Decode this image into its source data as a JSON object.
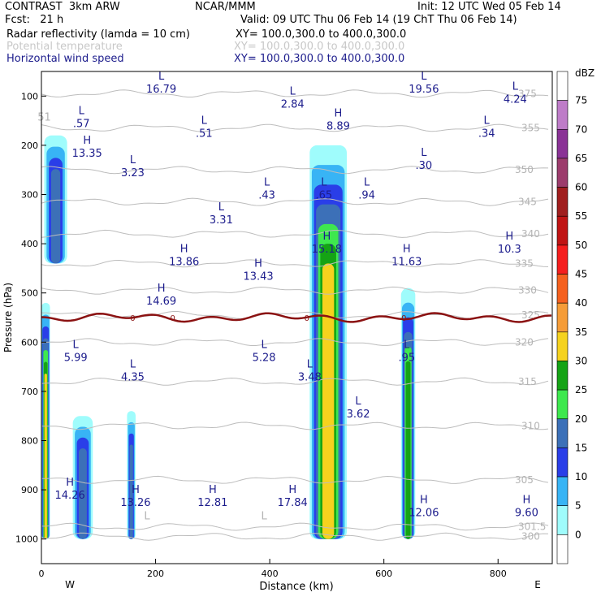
{
  "header": {
    "model": "CONTRAST  3km ARW",
    "center": "NCAR/MMM",
    "init": "Init: 12 UTC Wed 05 Feb 14",
    "fcst": "Fcst:   21 h",
    "valid": "Valid: 09 UTC Thu 06 Feb 14 (19 ChT Thu 06 Feb 14)",
    "fields": [
      {
        "name": "Radar reflectivity (lamda = 10 cm)",
        "xy": "XY= 100.0,300.0 to 400.0,300.0"
      },
      {
        "name": "Potential temperature",
        "xy": "XY= 100.0,300.0 to 400.0,300.0"
      },
      {
        "name": "Horizontal wind speed",
        "xy": "XY= 100.0,300.0 to 400.0,300.0"
      }
    ]
  },
  "chart_data": {
    "type": "heatmap",
    "xlabel": "Distance (km)",
    "ylabel": "Pressure (hPa)",
    "xlim": [
      0,
      895
    ],
    "ylim": [
      1050,
      50
    ],
    "x_ticks": [
      0,
      200,
      400,
      600,
      800
    ],
    "y_ticks": [
      100,
      200,
      300,
      400,
      500,
      600,
      700,
      800,
      900,
      1000
    ],
    "west_label": "W",
    "east_label": "E",
    "colorbar": {
      "unit": "dBZ",
      "levels": [
        0,
        5,
        10,
        15,
        20,
        25,
        30,
        35,
        40,
        45,
        50,
        55,
        60,
        65,
        70,
        75
      ],
      "colors": [
        "#ffffff",
        "#9ffcfc",
        "#38b4f5",
        "#2a3ee8",
        "#3c70b8",
        "#3ee84e",
        "#15a315",
        "#f5d21e",
        "#f59c38",
        "#f5601e",
        "#f51e1e",
        "#c01414",
        "#a01e1e",
        "#9c3c6c",
        "#8a3296",
        "#be7cc8",
        "#ffffff"
      ]
    },
    "reflectivity_cores": [
      {
        "x": [
          5,
          45
        ],
        "p": [
          180,
          440
        ],
        "max_dbz": 20
      },
      {
        "x": [
          0,
          15
        ],
        "p": [
          520,
          1000
        ],
        "max_dbz": 35
      },
      {
        "x": [
          55,
          90
        ],
        "p": [
          750,
          1000
        ],
        "max_dbz": 20
      },
      {
        "x": [
          150,
          165
        ],
        "p": [
          740,
          1000
        ],
        "max_dbz": 20
      },
      {
        "x": [
          470,
          535
        ],
        "p": [
          200,
          1000
        ],
        "max_dbz": 35
      },
      {
        "x": [
          630,
          655
        ],
        "p": [
          490,
          1000
        ],
        "max_dbz": 30
      }
    ],
    "theta_contours": [
      {
        "label": "300",
        "p": 995
      },
      {
        "label": "301.5",
        "p": 975
      },
      {
        "label": "305",
        "p": 880
      },
      {
        "label": "310",
        "p": 770
      },
      {
        "label": "315",
        "p": 680
      },
      {
        "label": "320",
        "p": 600
      },
      {
        "label": "325",
        "p": 545
      },
      {
        "label": "330",
        "p": 495
      },
      {
        "label": "335",
        "p": 440
      },
      {
        "label": "340",
        "p": 380
      },
      {
        "label": "345",
        "p": 315
      },
      {
        "label": "350",
        "p": 250
      },
      {
        "label": "355",
        "p": 165
      },
      {
        "label": "375",
        "p": 95
      }
    ],
    "freezing_level": {
      "label": "0",
      "p": 550
    },
    "wind_extrema": [
      {
        "type": "H",
        "value": "13.35",
        "x": 80,
        "p": 210
      },
      {
        "type": "H",
        "value": "13.86",
        "x": 250,
        "p": 430
      },
      {
        "type": "H",
        "value": "13.43",
        "x": 380,
        "p": 460
      },
      {
        "type": "H",
        "value": "14.69",
        "x": 210,
        "p": 510
      },
      {
        "type": "H",
        "value": "15.18",
        "x": 500,
        "p": 405
      },
      {
        "type": "H",
        "value": "11.63",
        "x": 640,
        "p": 430
      },
      {
        "type": "H",
        "value": "10.3",
        "x": 820,
        "p": 405
      },
      {
        "type": "H",
        "value": "8.89",
        "x": 520,
        "p": 155
      },
      {
        "type": "H",
        "value": "14.26",
        "x": 50,
        "p": 905
      },
      {
        "type": "H",
        "value": "13.26",
        "x": 165,
        "p": 920
      },
      {
        "type": "H",
        "value": "12.81",
        "x": 300,
        "p": 920
      },
      {
        "type": "H",
        "value": "17.84",
        "x": 440,
        "p": 920
      },
      {
        "type": "H",
        "value": "12.06",
        "x": 670,
        "p": 940
      },
      {
        "type": "H",
        "value": "9.60",
        "x": 850,
        "p": 940
      },
      {
        "type": "L",
        "value": "16.79",
        "x": 210,
        "p": 80
      },
      {
        "type": "L",
        "value": "2.84",
        "x": 440,
        "p": 110
      },
      {
        "type": "L",
        "value": "19.56",
        "x": 670,
        "p": 80
      },
      {
        "type": "L",
        "value": "4.24",
        "x": 830,
        "p": 100
      },
      {
        "type": "L",
        "value": ".57",
        "x": 70,
        "p": 150
      },
      {
        "type": "L",
        "value": ".51",
        "x": 285,
        "p": 170
      },
      {
        "type": "L",
        "value": ".34",
        "x": 780,
        "p": 170
      },
      {
        "type": "L",
        "value": "3.23",
        "x": 160,
        "p": 250
      },
      {
        "type": "L",
        "value": ".30",
        "x": 670,
        "p": 235
      },
      {
        "type": "L",
        "value": ".43",
        "x": 395,
        "p": 295
      },
      {
        "type": "L",
        "value": ".65",
        "x": 495,
        "p": 295
      },
      {
        "type": "L",
        "value": ".94",
        "x": 570,
        "p": 295
      },
      {
        "type": "L",
        "value": "3.31",
        "x": 315,
        "p": 345
      },
      {
        "type": "L",
        "value": "5.99",
        "x": 60,
        "p": 625
      },
      {
        "type": "L",
        "value": "5.28",
        "x": 390,
        "p": 625
      },
      {
        "type": "L",
        "value": ".95",
        "x": 640,
        "p": 625
      },
      {
        "type": "L",
        "value": "4.35",
        "x": 160,
        "p": 665
      },
      {
        "type": "L",
        "value": "3.48",
        "x": 470,
        "p": 665
      },
      {
        "type": "L",
        "value": "3.62",
        "x": 555,
        "p": 740
      }
    ],
    "edge_labels": [
      {
        "text": "51",
        "x": 5,
        "p": 150
      },
      {
        "text": "L",
        "x": 185,
        "p": 960
      },
      {
        "text": "L",
        "x": 390,
        "p": 960
      }
    ]
  }
}
